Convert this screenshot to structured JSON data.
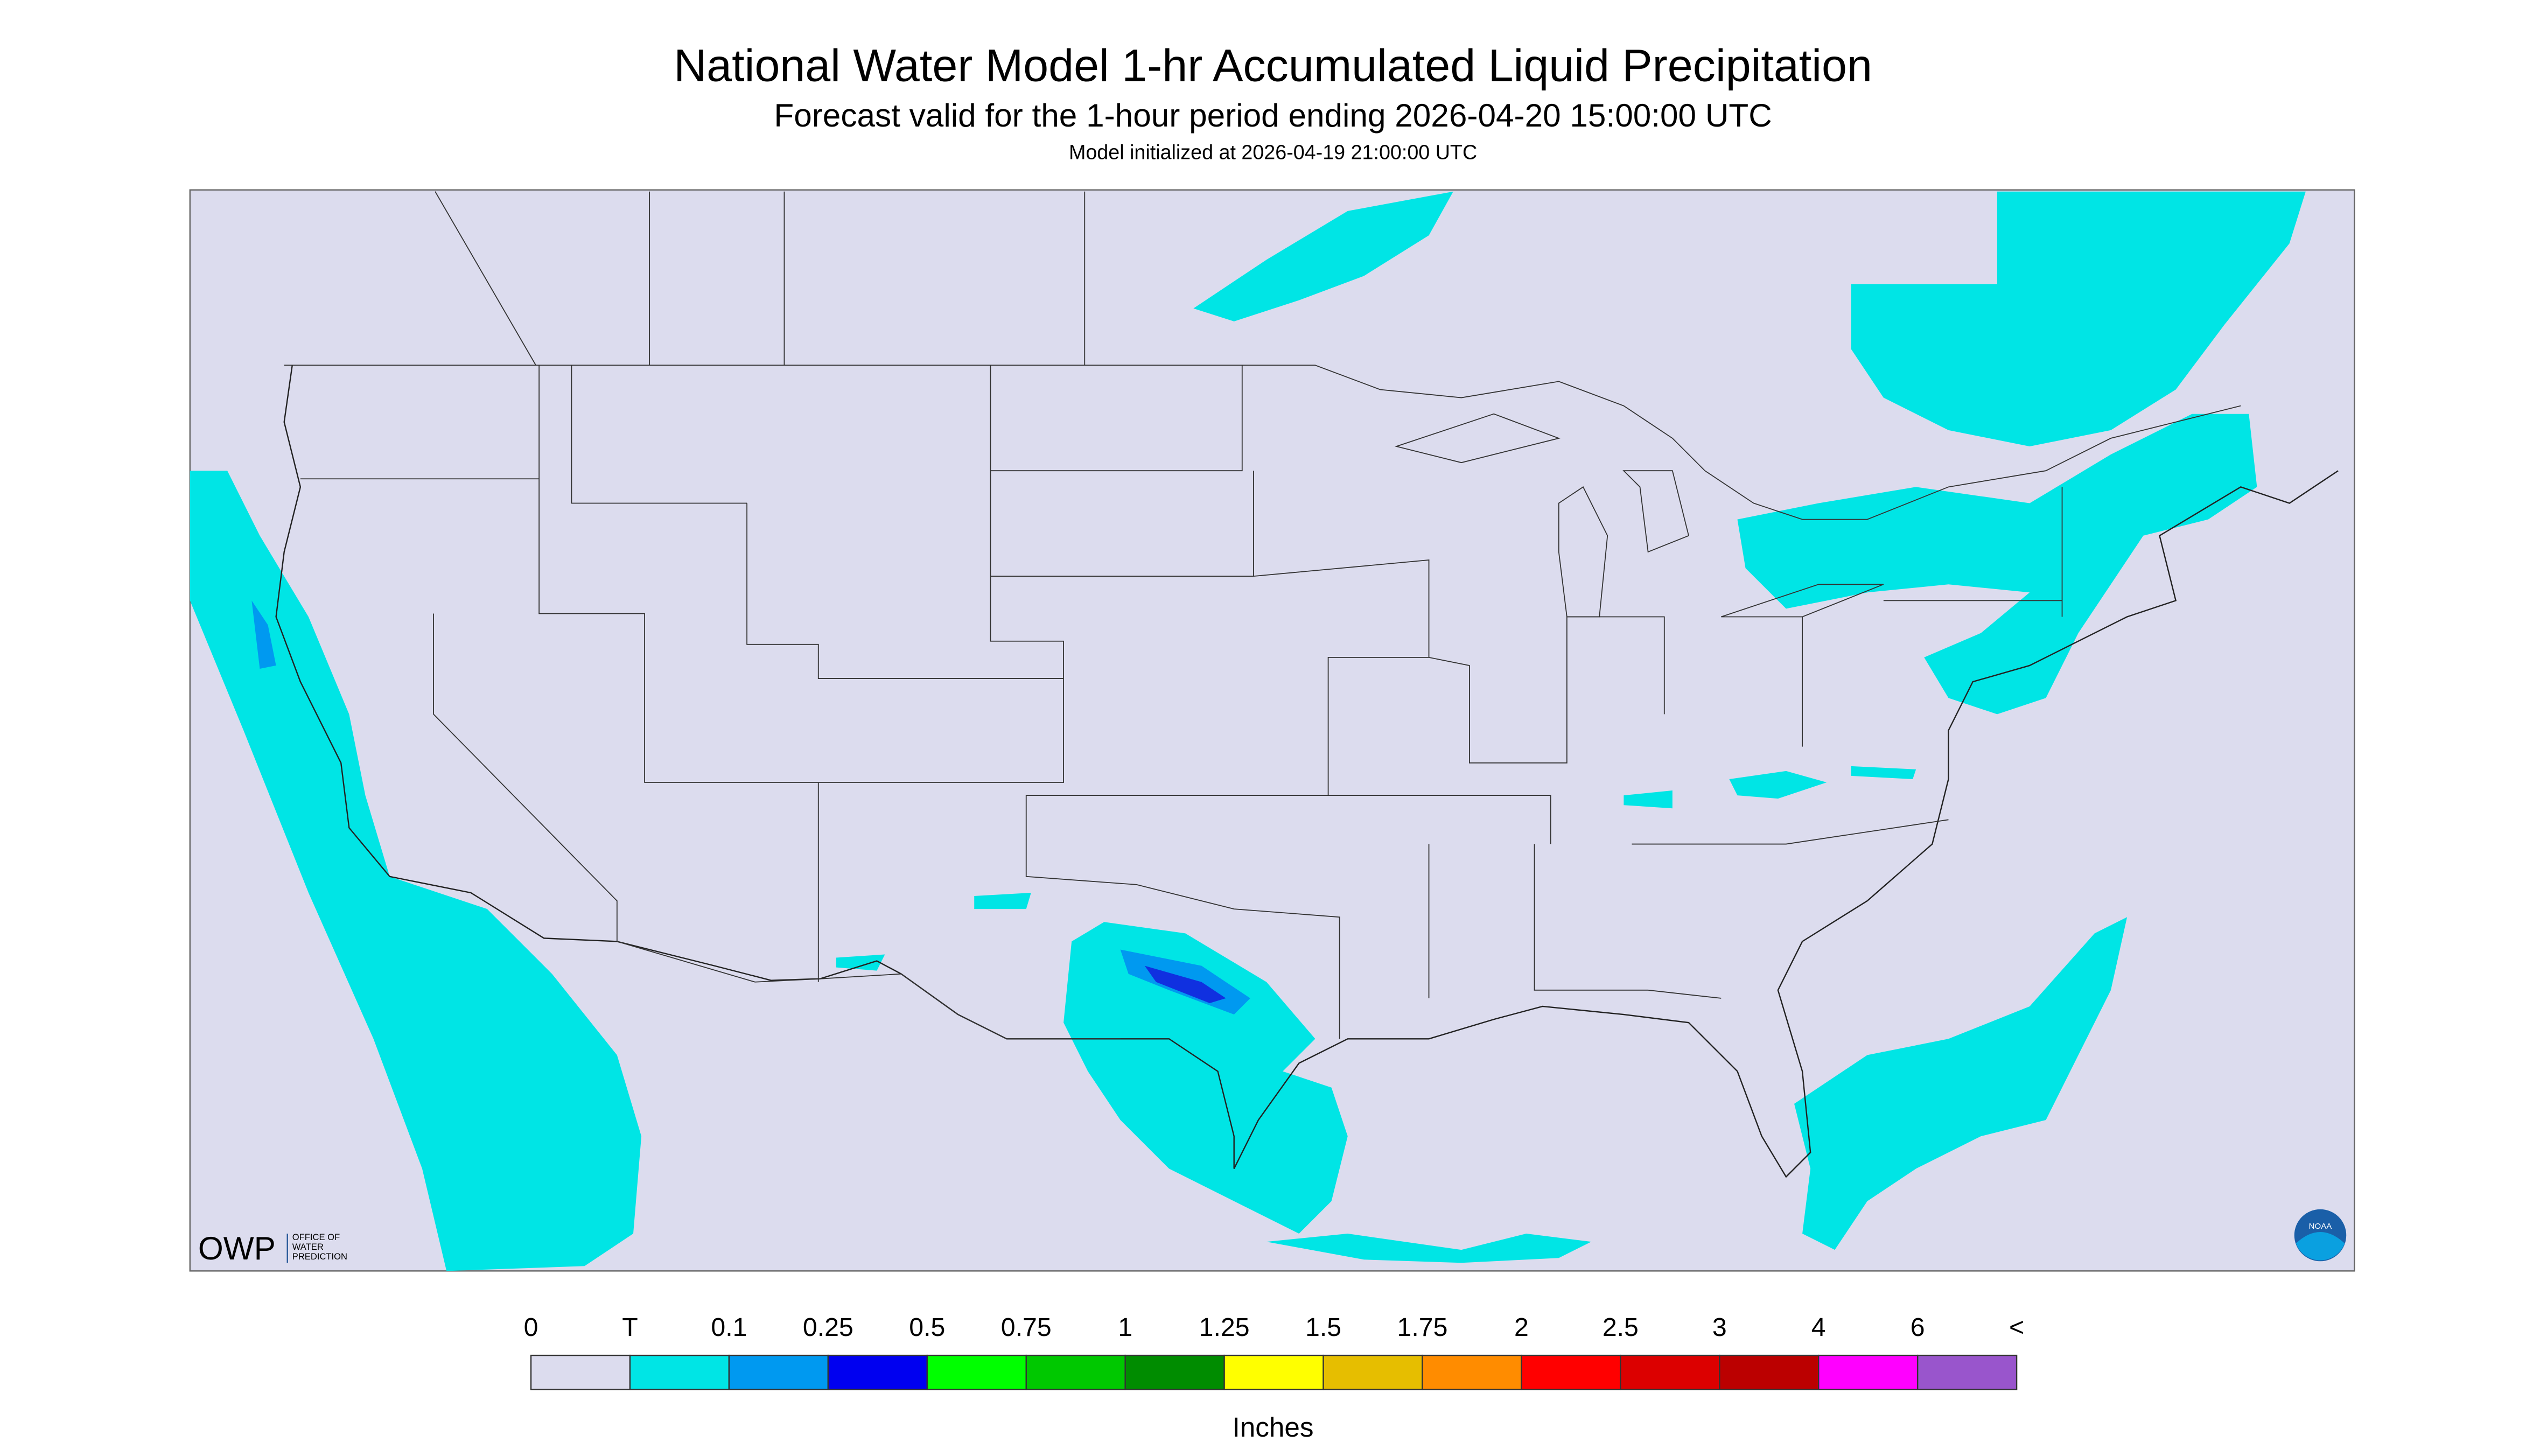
{
  "header": {
    "title": "National Water Model 1-hr Accumulated Liquid Precipitation",
    "subtitle": "Forecast valid for the 1-hour period ending 2026-04-20 15:00:00 UTC",
    "initialized": "Model initialized at 2026-04-19 21:00:00 UTC"
  },
  "legend": {
    "labels": [
      "0",
      "T",
      "0.1",
      "0.25",
      "0.5",
      "0.75",
      "1",
      "1.25",
      "1.5",
      "1.75",
      "2",
      "2.5",
      "3",
      "4",
      "6",
      "<"
    ],
    "colors": [
      "#dcdcee",
      "#00e5e5",
      "#0099f0",
      "#0000f0",
      "#00ff00",
      "#00c800",
      "#008c00",
      "#ffff00",
      "#e6be00",
      "#ff8c00",
      "#ff0000",
      "#dc0000",
      "#bb0000",
      "#ff00ff",
      "#9955cc"
    ],
    "unit": "Inches"
  },
  "logo": {
    "owp": "OWP",
    "lines": [
      "OFFICE OF",
      "WATER",
      "PREDICTION"
    ],
    "noaa": "NOAA"
  }
}
